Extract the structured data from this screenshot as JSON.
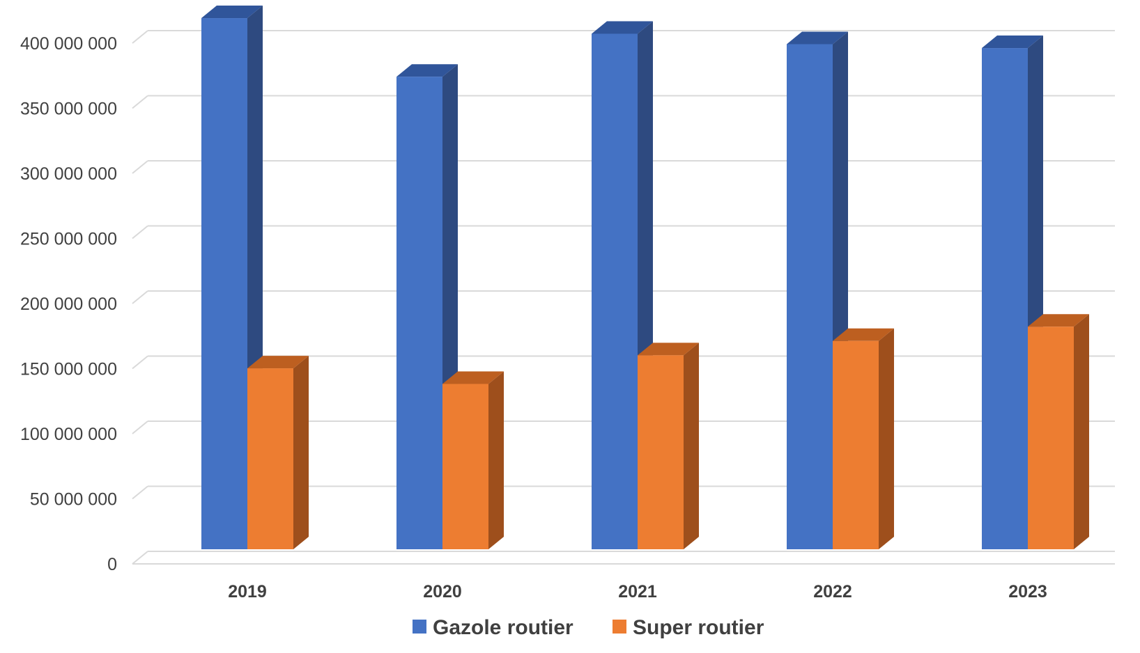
{
  "chart_data": {
    "type": "bar",
    "style": "3d-clustered-column",
    "title": "",
    "xlabel": "",
    "ylabel": "",
    "categories": [
      "2019",
      "2020",
      "2021",
      "2022",
      "2023"
    ],
    "ylim": [
      0,
      400000000
    ],
    "yticks": [
      0,
      50000000,
      100000000,
      150000000,
      200000000,
      250000000,
      300000000,
      350000000,
      400000000
    ],
    "ytick_labels": [
      "0",
      "50 000 000",
      "100 000 000",
      "150 000 000",
      "200 000 000",
      "250 000 000",
      "300 000 000",
      "350 000 000",
      "400 000 000"
    ],
    "grid": true,
    "legend_position": "bottom",
    "series": [
      {
        "name": "Gazole routier",
        "color": "#4472C4",
        "side_color": "#2E4A80",
        "top_color": "#30559A",
        "values": [
          408000000,
          363000000,
          396000000,
          388000000,
          385000000
        ]
      },
      {
        "name": "Super routier",
        "color": "#ED7D31",
        "side_color": "#9E4F1C",
        "top_color": "#BD5F20",
        "values": [
          139000000,
          127000000,
          149000000,
          160000000,
          171000000
        ]
      }
    ]
  }
}
